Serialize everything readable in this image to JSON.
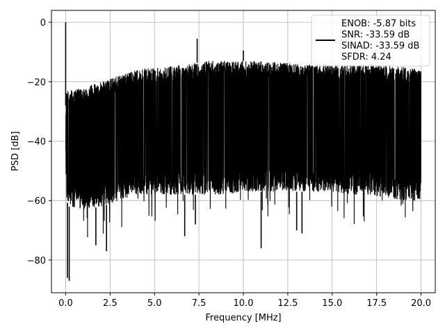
{
  "chart_data": {
    "type": "line",
    "title": "",
    "xlabel": "Frequency [MHz]",
    "ylabel": "PSD [dB]",
    "xlim": [
      -0.8,
      20.8
    ],
    "ylim": [
      -91,
      4
    ],
    "xticks": [
      0.0,
      2.5,
      5.0,
      7.5,
      10.0,
      12.5,
      15.0,
      17.5,
      20.0
    ],
    "xtick_labels": [
      "0.0",
      "2.5",
      "5.0",
      "7.5",
      "10.0",
      "12.5",
      "15.0",
      "17.5",
      "20.0"
    ],
    "yticks": [
      0,
      -20,
      -40,
      -60,
      -80
    ],
    "ytick_labels": [
      "0",
      "−20",
      "−40",
      "−60",
      "−80"
    ],
    "grid": true,
    "legend_position": "top-right",
    "legend_entries": [
      "ENOB: -5.87 bits",
      "SNR: -33.59 dB",
      "SINAD: -33.59 dB",
      "SFDR: 4.24"
    ],
    "line_color": "#000000",
    "series": [
      {
        "style": "dense noise floor",
        "envelope_x": [
          0.0,
          0.05,
          0.2,
          1.0,
          2.0,
          3.0,
          4.0,
          5.0,
          6.0,
          7.0,
          8.0,
          9.0,
          10.0,
          11.0,
          12.0,
          13.0,
          14.0,
          15.0,
          16.0,
          17.0,
          18.0,
          19.0,
          20.0
        ],
        "envelope_upper": [
          -28,
          -22,
          -23,
          -22,
          -20,
          -18,
          -16,
          -15,
          -14.5,
          -14,
          -13,
          -13,
          -13,
          -13,
          -13.5,
          -14,
          -14,
          -14,
          -14,
          -14,
          -14.5,
          -15,
          -16
        ],
        "envelope_lower": [
          -45,
          -60,
          -62,
          -63,
          -62,
          -60,
          -58,
          -58,
          -58,
          -58,
          -58,
          -58,
          -57,
          -57,
          -57,
          -57,
          -57,
          -57,
          -58,
          -58,
          -59,
          -60,
          -60
        ],
        "peaks": [
          {
            "x": 0.0,
            "y": 0
          },
          {
            "x": 0.1,
            "y": -86
          },
          {
            "x": 0.2,
            "y": -87
          },
          {
            "x": 7.4,
            "y": -5.5
          },
          {
            "x": 10.0,
            "y": -9.5
          },
          {
            "x": 11.0,
            "y": -76
          },
          {
            "x": 2.3,
            "y": -77
          },
          {
            "x": 1.7,
            "y": -75
          },
          {
            "x": 6.7,
            "y": -72
          },
          {
            "x": 13.3,
            "y": -71
          },
          {
            "x": 7.3,
            "y": -68
          },
          {
            "x": 13.0,
            "y": -70
          }
        ]
      }
    ]
  }
}
